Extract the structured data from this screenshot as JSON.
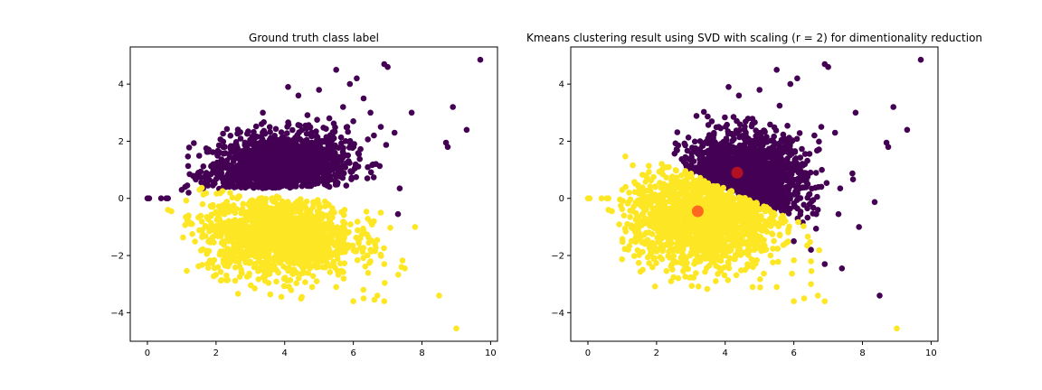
{
  "colors": {
    "class_0": "#440154",
    "class_1": "#fde725",
    "centroid_0": "#c1121f",
    "centroid_1": "#ff5a1f"
  },
  "chart_data": [
    {
      "type": "scatter",
      "title": "Ground truth class label",
      "xlim": [
        -0.5,
        10.2
      ],
      "ylim": [
        -5.0,
        5.3
      ],
      "xticks": [
        0,
        2,
        4,
        6,
        8,
        10
      ],
      "yticks": [
        -4,
        -2,
        0,
        2,
        4
      ],
      "grid": false,
      "legend": "none",
      "series": [
        {
          "color": "#440154",
          "cloud": {
            "cx": 3.8,
            "cy": 0.9,
            "sx": 1.0,
            "sy": 0.6,
            "count": 1500
          },
          "points": [
            [
              0.0,
              0.0
            ],
            [
              0.05,
              0.0
            ],
            [
              0.4,
              0.0
            ],
            [
              0.55,
              0.0
            ],
            [
              0.6,
              0.0
            ],
            [
              1.0,
              0.3
            ],
            [
              1.1,
              0.4
            ],
            [
              1.2,
              0.2
            ],
            [
              4.1,
              3.9
            ],
            [
              4.4,
              3.6
            ],
            [
              5.0,
              3.8
            ],
            [
              5.5,
              4.5
            ],
            [
              5.9,
              4.0
            ],
            [
              6.1,
              4.2
            ],
            [
              6.9,
              4.7
            ],
            [
              7.0,
              4.6
            ],
            [
              7.7,
              3.0
            ],
            [
              8.9,
              3.2
            ],
            [
              9.7,
              4.85
            ],
            [
              8.7,
              1.95
            ],
            [
              8.75,
              1.8
            ],
            [
              9.3,
              2.4
            ],
            [
              7.2,
              2.3
            ],
            [
              7.35,
              0.35
            ],
            [
              7.3,
              -0.55
            ],
            [
              6.6,
              2.2
            ],
            [
              6.8,
              2.5
            ],
            [
              6.5,
              3.0
            ],
            [
              6.3,
              3.5
            ],
            [
              5.7,
              3.2
            ],
            [
              5.3,
              2.8
            ],
            [
              6.0,
              2.7
            ]
          ]
        },
        {
          "color": "#fde725",
          "cloud": {
            "cx": 3.8,
            "cy": -1.2,
            "sx": 1.1,
            "sy": 0.7,
            "count": 1500
          },
          "points": [
            [
              0.6,
              -0.4
            ],
            [
              0.7,
              -0.45
            ],
            [
              1.2,
              -0.6
            ],
            [
              1.3,
              -0.9
            ],
            [
              7.8,
              -1.0
            ],
            [
              7.4,
              -2.4
            ],
            [
              6.9,
              -2.3
            ],
            [
              6.9,
              -3.6
            ],
            [
              6.7,
              -3.4
            ],
            [
              6.3,
              -3.5
            ],
            [
              6.0,
              -3.6
            ],
            [
              8.5,
              -3.4
            ],
            [
              9.0,
              -4.55
            ],
            [
              7.5,
              -2.45
            ],
            [
              6.5,
              -2.2
            ],
            [
              6.5,
              -1.8
            ],
            [
              6.8,
              -0.5
            ],
            [
              6.6,
              -0.8
            ],
            [
              6.2,
              -1.4
            ],
            [
              5.5,
              -3.1
            ],
            [
              4.8,
              -3.1
            ]
          ]
        }
      ]
    },
    {
      "type": "scatter",
      "title": "Kmeans clustering result using SVD with scaling (r = 2) for dimentionality reduction",
      "xlim": [
        -0.5,
        10.2
      ],
      "ylim": [
        -5.0,
        5.3
      ],
      "xticks": [
        0,
        2,
        4,
        6,
        8,
        10
      ],
      "yticks": [
        -4,
        -2,
        0,
        2,
        4
      ],
      "grid": false,
      "legend": "none",
      "series": [
        {
          "color": "#440154",
          "cloud": {
            "cx": 4.5,
            "cy": 0.6,
            "sx": 0.9,
            "sy": 0.8,
            "count": 1400,
            "side": "upper"
          },
          "points": [
            [
              4.1,
              3.9
            ],
            [
              4.4,
              3.6
            ],
            [
              5.0,
              3.8
            ],
            [
              5.5,
              4.5
            ],
            [
              5.9,
              4.0
            ],
            [
              6.1,
              4.2
            ],
            [
              6.9,
              4.7
            ],
            [
              7.0,
              4.6
            ],
            [
              7.8,
              3.0
            ],
            [
              8.9,
              3.2
            ],
            [
              9.7,
              4.85
            ],
            [
              8.7,
              1.95
            ],
            [
              8.75,
              1.8
            ],
            [
              9.3,
              2.4
            ],
            [
              7.2,
              2.3
            ],
            [
              7.35,
              0.35
            ],
            [
              7.3,
              -0.55
            ],
            [
              6.6,
              2.2
            ],
            [
              6.8,
              2.5
            ],
            [
              6.9,
              -2.3
            ],
            [
              7.4,
              -2.45
            ],
            [
              8.5,
              -3.4
            ],
            [
              7.9,
              -1.0
            ],
            [
              6.5,
              -1.8
            ],
            [
              6.0,
              -1.5
            ],
            [
              6.7,
              -0.4
            ]
          ]
        },
        {
          "color": "#fde725",
          "cloud": {
            "cx": 3.4,
            "cy": -0.6,
            "sx": 1.1,
            "sy": 0.9,
            "count": 1600,
            "side": "lower"
          },
          "points": [
            [
              0.0,
              0.0
            ],
            [
              0.05,
              0.0
            ],
            [
              0.4,
              0.0
            ],
            [
              0.55,
              0.0
            ],
            [
              0.6,
              0.0
            ],
            [
              0.6,
              -0.4
            ],
            [
              0.7,
              -0.45
            ],
            [
              1.0,
              0.3
            ],
            [
              1.1,
              0.4
            ],
            [
              1.2,
              0.2
            ],
            [
              6.9,
              -3.6
            ],
            [
              6.7,
              -3.4
            ],
            [
              6.3,
              -3.5
            ],
            [
              6.0,
              -3.6
            ],
            [
              6.5,
              -3.0
            ],
            [
              9.0,
              -4.55
            ],
            [
              5.5,
              -3.1
            ],
            [
              4.8,
              -3.1
            ],
            [
              6.5,
              -2.2
            ]
          ]
        }
      ],
      "centroids": [
        {
          "x": 4.35,
          "y": 0.9,
          "color": "#c1121f"
        },
        {
          "x": 3.2,
          "y": -0.45,
          "color": "#ff5a1f"
        }
      ]
    }
  ]
}
